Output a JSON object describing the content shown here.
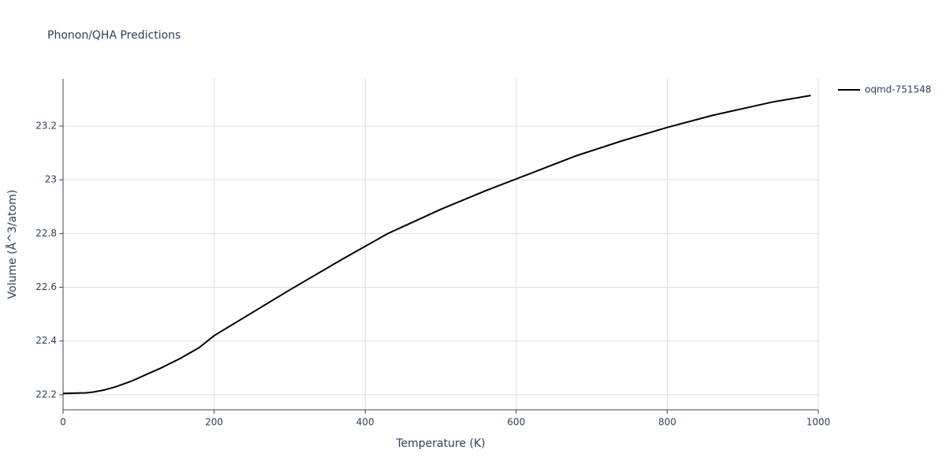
{
  "chart_data": {
    "type": "line",
    "title": "Phonon/QHA Predictions",
    "x_label": "Temperature (K)",
    "y_label": "Volume (Å^3/atom)",
    "series": [
      {
        "name": "oqmd-751548",
        "color": "#000000",
        "x": [
          0,
          30,
          40,
          55,
          70,
          90,
          110,
          130,
          155,
          180,
          200,
          250,
          300,
          370,
          430,
          500,
          560,
          620,
          680,
          740,
          800,
          860,
          940,
          990
        ],
        "values": [
          22.205,
          22.207,
          22.21,
          22.218,
          22.23,
          22.25,
          22.275,
          22.3,
          22.335,
          22.375,
          22.42,
          22.505,
          22.59,
          22.705,
          22.8,
          22.89,
          22.96,
          23.025,
          23.09,
          23.145,
          23.195,
          23.24,
          23.29,
          23.314
        ]
      }
    ],
    "xlim": [
      0,
      1000
    ],
    "xticks": [
      0,
      200,
      400,
      600,
      800,
      1000
    ],
    "ylim": [
      22.144,
      23.376
    ],
    "yticks": [
      22.2,
      22.4,
      22.6,
      22.8,
      23,
      23.2
    ],
    "grid": true,
    "legend": "top-right"
  }
}
